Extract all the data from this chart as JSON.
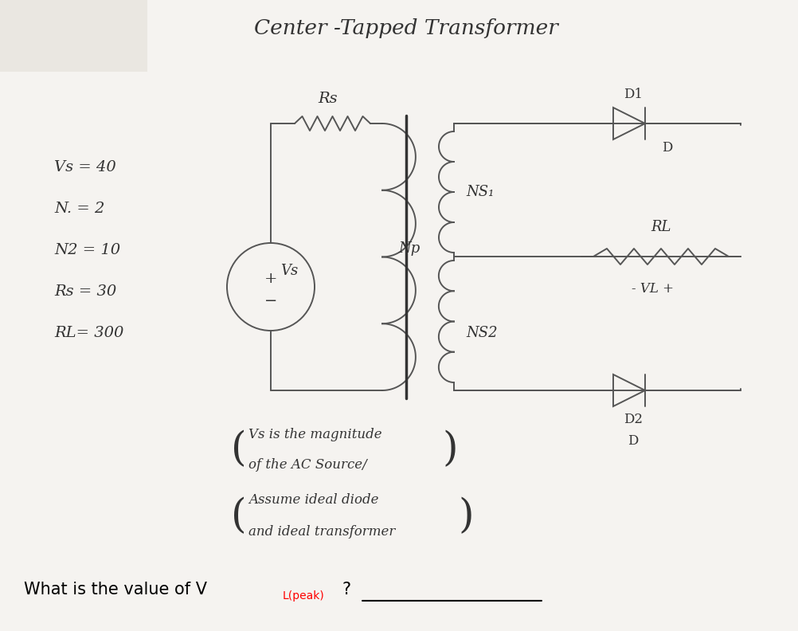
{
  "title": "Center -Tapped Transformer",
  "bg_color": "#f5f3f0",
  "line_color": "#555555",
  "dark_color": "#333333",
  "params": [
    "Vs = 40",
    "N. = 2",
    "N2 = 10",
    "Rs = 30",
    "RL= 300"
  ],
  "note1_line1": "Vs is the magnitude",
  "note1_line2": "of the AC Source/",
  "note2_line1": "Assume ideal diode",
  "note2_line2": "and ideal transformer",
  "question_main": "What is the value of V",
  "question_sub": "L(peak)",
  "question_end": "?",
  "lw": 1.4
}
